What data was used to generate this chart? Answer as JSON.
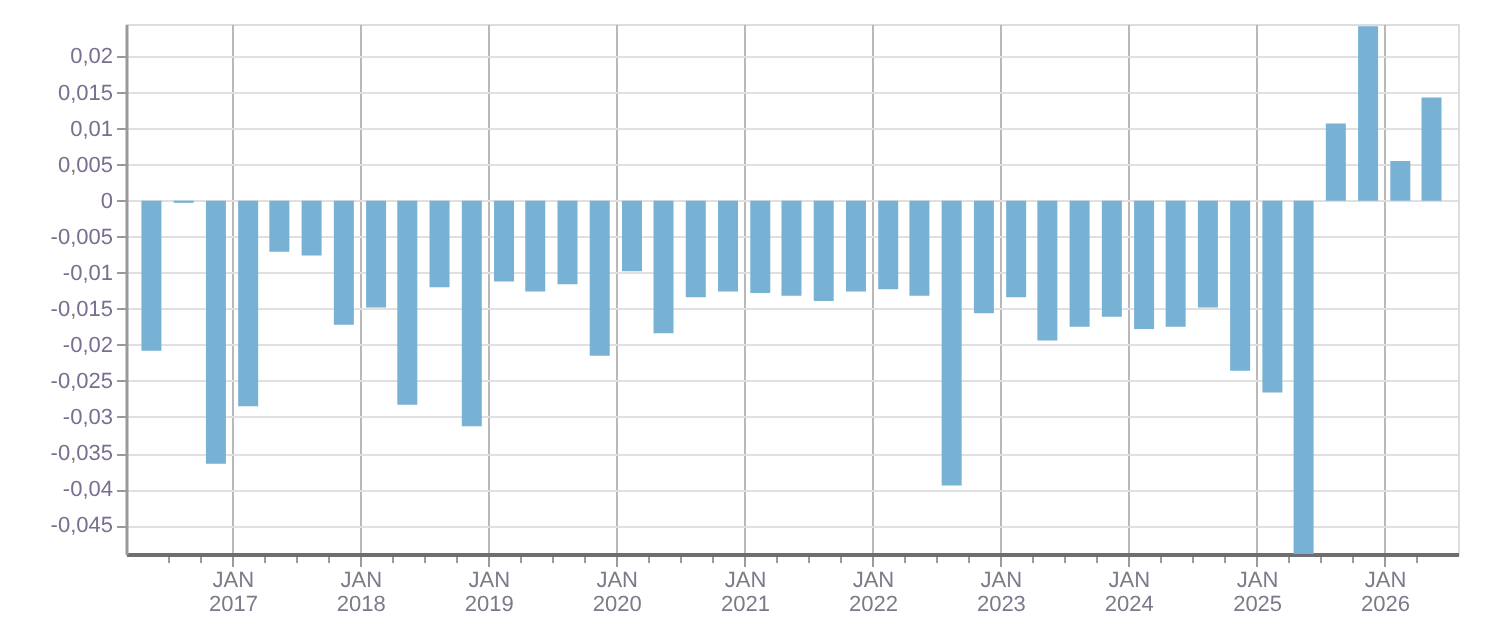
{
  "chart_data": {
    "type": "bar",
    "x": [
      "2016-05-15",
      "2016-08-15",
      "2016-11-15",
      "2017-02-15",
      "2017-05-15",
      "2017-08-15",
      "2017-11-15",
      "2018-02-15",
      "2018-05-15",
      "2018-08-15",
      "2018-11-15",
      "2019-02-15",
      "2019-05-15",
      "2019-08-15",
      "2019-11-15",
      "2020-02-15",
      "2020-05-15",
      "2020-08-15",
      "2020-11-15",
      "2021-02-15",
      "2021-05-15",
      "2021-08-15",
      "2021-11-15",
      "2022-02-15",
      "2022-05-15",
      "2022-08-15",
      "2022-11-15",
      "2023-02-15",
      "2023-05-15",
      "2023-08-15",
      "2023-11-15",
      "2024-02-15",
      "2024-05-15",
      "2024-08-15",
      "2024-11-15",
      "2025-02-15",
      "2025-05-15",
      "2025-08-15",
      "2025-11-15",
      "2026-02-15",
      "2026-05-15"
    ],
    "values": [
      -0.0208,
      -0.0003,
      -0.0365,
      -0.0285,
      -0.0071,
      -0.0076,
      -0.0172,
      -0.0148,
      -0.0283,
      -0.012,
      -0.0313,
      -0.0112,
      -0.0126,
      -0.0116,
      -0.0215,
      -0.0098,
      -0.0184,
      -0.0134,
      -0.0126,
      -0.0128,
      -0.0132,
      -0.0139,
      -0.0126,
      -0.0123,
      -0.0132,
      -0.0395,
      -0.0156,
      -0.0134,
      -0.0194,
      -0.0175,
      -0.0161,
      -0.0178,
      -0.0175,
      -0.0148,
      -0.0236,
      -0.0266,
      -0.049,
      0.0107,
      0.0242,
      0.0055,
      0.0143
    ],
    "color": "#77b1d4",
    "xlim": [
      "2016-04-01",
      "2026-07-01"
    ],
    "xticks": [
      {
        "value": "2016-07-01",
        "label": null
      },
      {
        "value": "2016-10-01",
        "label": null
      },
      {
        "value": "2017-01-01",
        "label": "JAN\n2017"
      },
      {
        "value": "2017-04-01",
        "label": null
      },
      {
        "value": "2017-07-01",
        "label": null
      },
      {
        "value": "2017-10-01",
        "label": null
      },
      {
        "value": "2018-01-01",
        "label": "JAN\n2018"
      },
      {
        "value": "2018-04-01",
        "label": null
      },
      {
        "value": "2018-07-01",
        "label": null
      },
      {
        "value": "2018-10-01",
        "label": null
      },
      {
        "value": "2019-01-01",
        "label": "JAN\n2019"
      },
      {
        "value": "2019-04-01",
        "label": null
      },
      {
        "value": "2019-07-01",
        "label": null
      },
      {
        "value": "2019-10-01",
        "label": null
      },
      {
        "value": "2020-01-01",
        "label": "JAN\n2020"
      },
      {
        "value": "2020-04-01",
        "label": null
      },
      {
        "value": "2020-07-01",
        "label": null
      },
      {
        "value": "2020-10-01",
        "label": null
      },
      {
        "value": "2021-01-01",
        "label": "JAN\n2021"
      },
      {
        "value": "2021-04-01",
        "label": null
      },
      {
        "value": "2021-07-01",
        "label": null
      },
      {
        "value": "2021-10-01",
        "label": null
      },
      {
        "value": "2022-01-01",
        "label": "JAN\n2022"
      },
      {
        "value": "2022-04-01",
        "label": null
      },
      {
        "value": "2022-07-01",
        "label": null
      },
      {
        "value": "2022-10-01",
        "label": null
      },
      {
        "value": "2023-01-01",
        "label": "JAN\n2023"
      },
      {
        "value": "2023-04-01",
        "label": null
      },
      {
        "value": "2023-07-01",
        "label": null
      },
      {
        "value": "2023-10-01",
        "label": null
      },
      {
        "value": "2024-01-01",
        "label": "JAN\n2024"
      },
      {
        "value": "2024-04-01",
        "label": null
      },
      {
        "value": "2024-07-01",
        "label": null
      },
      {
        "value": "2024-10-01",
        "label": null
      },
      {
        "value": "2025-01-01",
        "label": "JAN\n2025"
      },
      {
        "value": "2025-04-01",
        "label": null
      },
      {
        "value": "2025-07-01",
        "label": null
      },
      {
        "value": "2025-10-01",
        "label": null
      },
      {
        "value": "2026-01-01",
        "label": "JAN\n2026"
      },
      {
        "value": "2026-04-01",
        "label": null
      }
    ],
    "ylim": [
      -0.049,
      0.0245
    ],
    "yticks": [
      {
        "value": 0.02,
        "label": "0,02"
      },
      {
        "value": 0.015,
        "label": "0,015"
      },
      {
        "value": 0.01,
        "label": "0,01"
      },
      {
        "value": 0.005,
        "label": "0,005"
      },
      {
        "value": 0,
        "label": "0"
      },
      {
        "value": -0.005,
        "label": "-0,005"
      },
      {
        "value": -0.01,
        "label": "-0,01"
      },
      {
        "value": -0.015,
        "label": "-0,015"
      },
      {
        "value": -0.02,
        "label": "-0,02"
      },
      {
        "value": -0.025,
        "label": "-0,025"
      },
      {
        "value": -0.03,
        "label": "-0,03"
      },
      {
        "value": -0.035,
        "label": "-0,035"
      },
      {
        "value": -0.04,
        "label": "-0,04"
      },
      {
        "value": -0.045,
        "label": "-0,045"
      }
    ],
    "grid": true
  }
}
